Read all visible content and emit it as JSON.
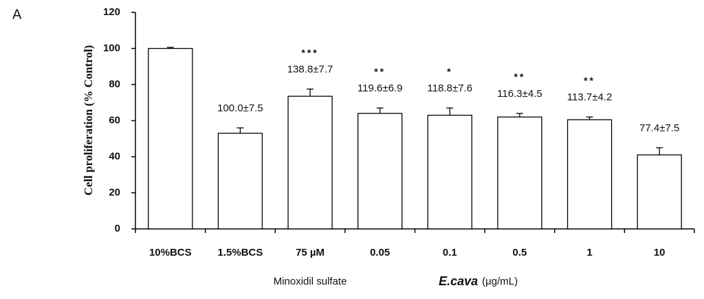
{
  "chart_data": {
    "type": "bar",
    "panel_label": "A",
    "ylabel": "Cell proliferation (% Control)",
    "categories": [
      "10%BCS",
      "1.5%BCS",
      "75 µM",
      "0.05",
      "0.1",
      "0.5",
      "1",
      "10"
    ],
    "values": [
      100,
      53,
      73.5,
      64,
      63,
      62,
      60.5,
      41
    ],
    "errors": [
      0.6,
      3,
      4,
      3,
      4,
      2,
      1.5,
      4
    ],
    "annotations": [
      null,
      "100.0±7.5",
      "138.8±7.7",
      "119.6±6.9",
      "118.8±7.6",
      "116.3±4.5",
      "113.7±4.2",
      "77.4±7.5"
    ],
    "significance": [
      null,
      null,
      "***",
      "**",
      "*",
      "**",
      "**",
      null
    ],
    "groups": [
      {
        "label": "Minoxidil sulfate"
      },
      {
        "label": "E.cava",
        "unit": "(μg/mL)"
      }
    ],
    "color": "#ffffff",
    "edgecolor": "#000000",
    "ylim": [
      0,
      120
    ],
    "yticks": [
      0,
      20,
      40,
      60,
      80,
      100,
      120
    ]
  }
}
